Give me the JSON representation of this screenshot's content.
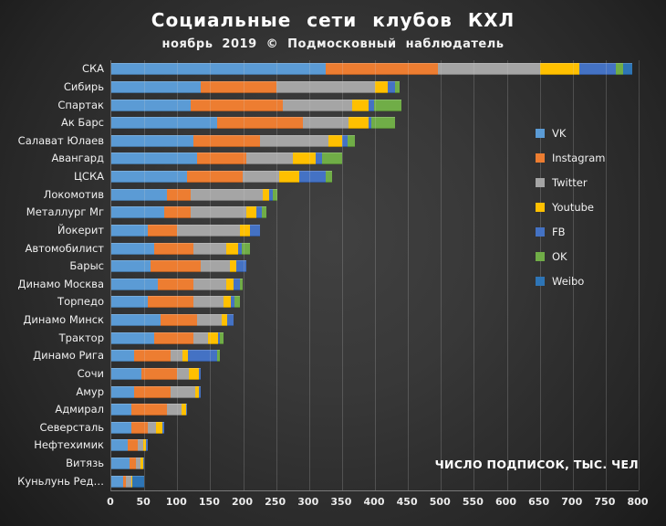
{
  "title": "Социальные сети клубов КХЛ",
  "subtitle": "ноябрь 2019 © Подмосковный наблюдатель",
  "axis_note": "ЧИСЛО ПОДПИСОК, ТЫС. ЧЕЛ",
  "chart_data": {
    "type": "bar",
    "orientation": "horizontal",
    "stacked": true,
    "grid": true,
    "legend_position": "right-inside",
    "xlabel": "ЧИСЛО ПОДПИСОК, ТЫС. ЧЕЛ",
    "xlim": [
      0,
      800
    ],
    "xtick_step": 50,
    "categories": [
      "СКА",
      "Сибирь",
      "Спартак",
      "Ак Барс",
      "Салават Юлаев",
      "Авангард",
      "ЦСКА",
      "Локомотив",
      "Металлург Мг",
      "Йокерит",
      "Автомобилист",
      "Барыс",
      "Динамо Москва",
      "Торпедо",
      "Динамо Минск",
      "Трактор",
      "Динамо Рига",
      "Сочи",
      "Амур",
      "Адмирал",
      "Северсталь",
      "Нефтехимик",
      "Витязь",
      "Куньлунь Ред…"
    ],
    "series": [
      {
        "name": "VK",
        "color": "#5B9BD5",
        "values": [
          325,
          135,
          120,
          160,
          125,
          130,
          115,
          85,
          80,
          55,
          65,
          60,
          70,
          55,
          75,
          65,
          35,
          45,
          35,
          30,
          30,
          25,
          28,
          18
        ]
      },
      {
        "name": "Instagram",
        "color": "#ED7D31",
        "values": [
          170,
          115,
          140,
          130,
          100,
          75,
          85,
          35,
          40,
          45,
          60,
          75,
          55,
          70,
          55,
          60,
          55,
          55,
          55,
          55,
          25,
          15,
          10,
          4
        ]
      },
      {
        "name": "Twitter",
        "color": "#A5A5A5",
        "values": [
          155,
          150,
          105,
          70,
          105,
          70,
          55,
          110,
          85,
          95,
          50,
          45,
          50,
          45,
          38,
          22,
          18,
          18,
          38,
          22,
          13,
          8,
          6,
          8
        ]
      },
      {
        "name": "Youtube",
        "color": "#FFC000",
        "values": [
          60,
          20,
          25,
          30,
          20,
          35,
          30,
          10,
          15,
          15,
          18,
          10,
          10,
          12,
          8,
          15,
          8,
          15,
          5,
          6,
          10,
          5,
          4,
          2
        ]
      },
      {
        "name": "FB",
        "color": "#4472C4",
        "values": [
          55,
          10,
          8,
          5,
          8,
          10,
          40,
          5,
          8,
          15,
          5,
          15,
          10,
          5,
          9,
          3,
          44,
          2,
          2,
          2,
          2,
          2,
          2,
          0
        ]
      },
      {
        "name": "OK",
        "color": "#70AD47",
        "values": [
          12,
          8,
          42,
          35,
          12,
          30,
          10,
          7,
          7,
          0,
          12,
          0,
          5,
          8,
          0,
          5,
          5,
          0,
          0,
          0,
          0,
          0,
          0,
          0
        ]
      },
      {
        "name": "Weibo",
        "color": "#2E75B6",
        "values": [
          13,
          0,
          0,
          0,
          0,
          0,
          0,
          0,
          0,
          0,
          0,
          0,
          0,
          0,
          0,
          0,
          0,
          0,
          0,
          0,
          0,
          0,
          0,
          18
        ]
      }
    ]
  }
}
